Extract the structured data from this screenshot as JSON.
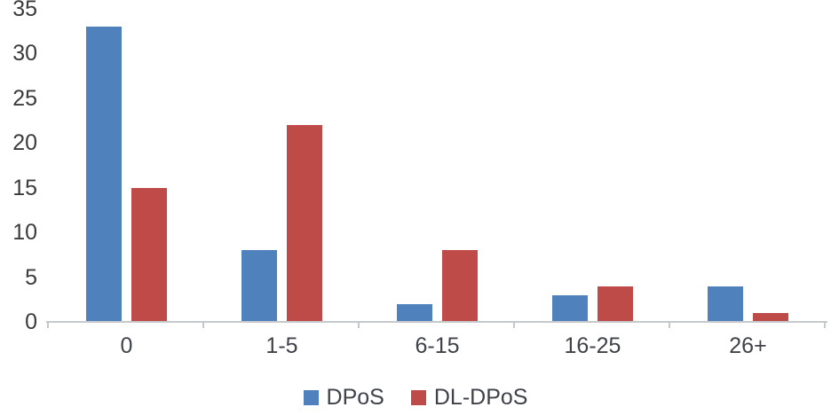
{
  "chart_data": {
    "type": "bar",
    "title": "",
    "xlabel": "",
    "ylabel": "",
    "categories": [
      "0",
      "1-5",
      "6-15",
      "16-25",
      "26+"
    ],
    "series": [
      {
        "name": "DPoS",
        "color": "#4f81bd",
        "values": [
          33,
          8,
          2,
          3,
          4
        ]
      },
      {
        "name": "DL-DPoS",
        "color": "#be4b48",
        "values": [
          15,
          22,
          8,
          4,
          1
        ]
      }
    ],
    "ylim": [
      0,
      35
    ],
    "yticks": [
      0,
      5,
      10,
      15,
      20,
      25,
      30,
      35
    ],
    "grid": false,
    "legend_position": "bottom-center",
    "axis_line_color": "#c6c9cc",
    "label_color": "#3f4249"
  },
  "legend": {
    "items": [
      {
        "label": "DPoS",
        "color": "#4f81bd"
      },
      {
        "label": "DL-DPoS",
        "color": "#be4b48"
      }
    ]
  }
}
